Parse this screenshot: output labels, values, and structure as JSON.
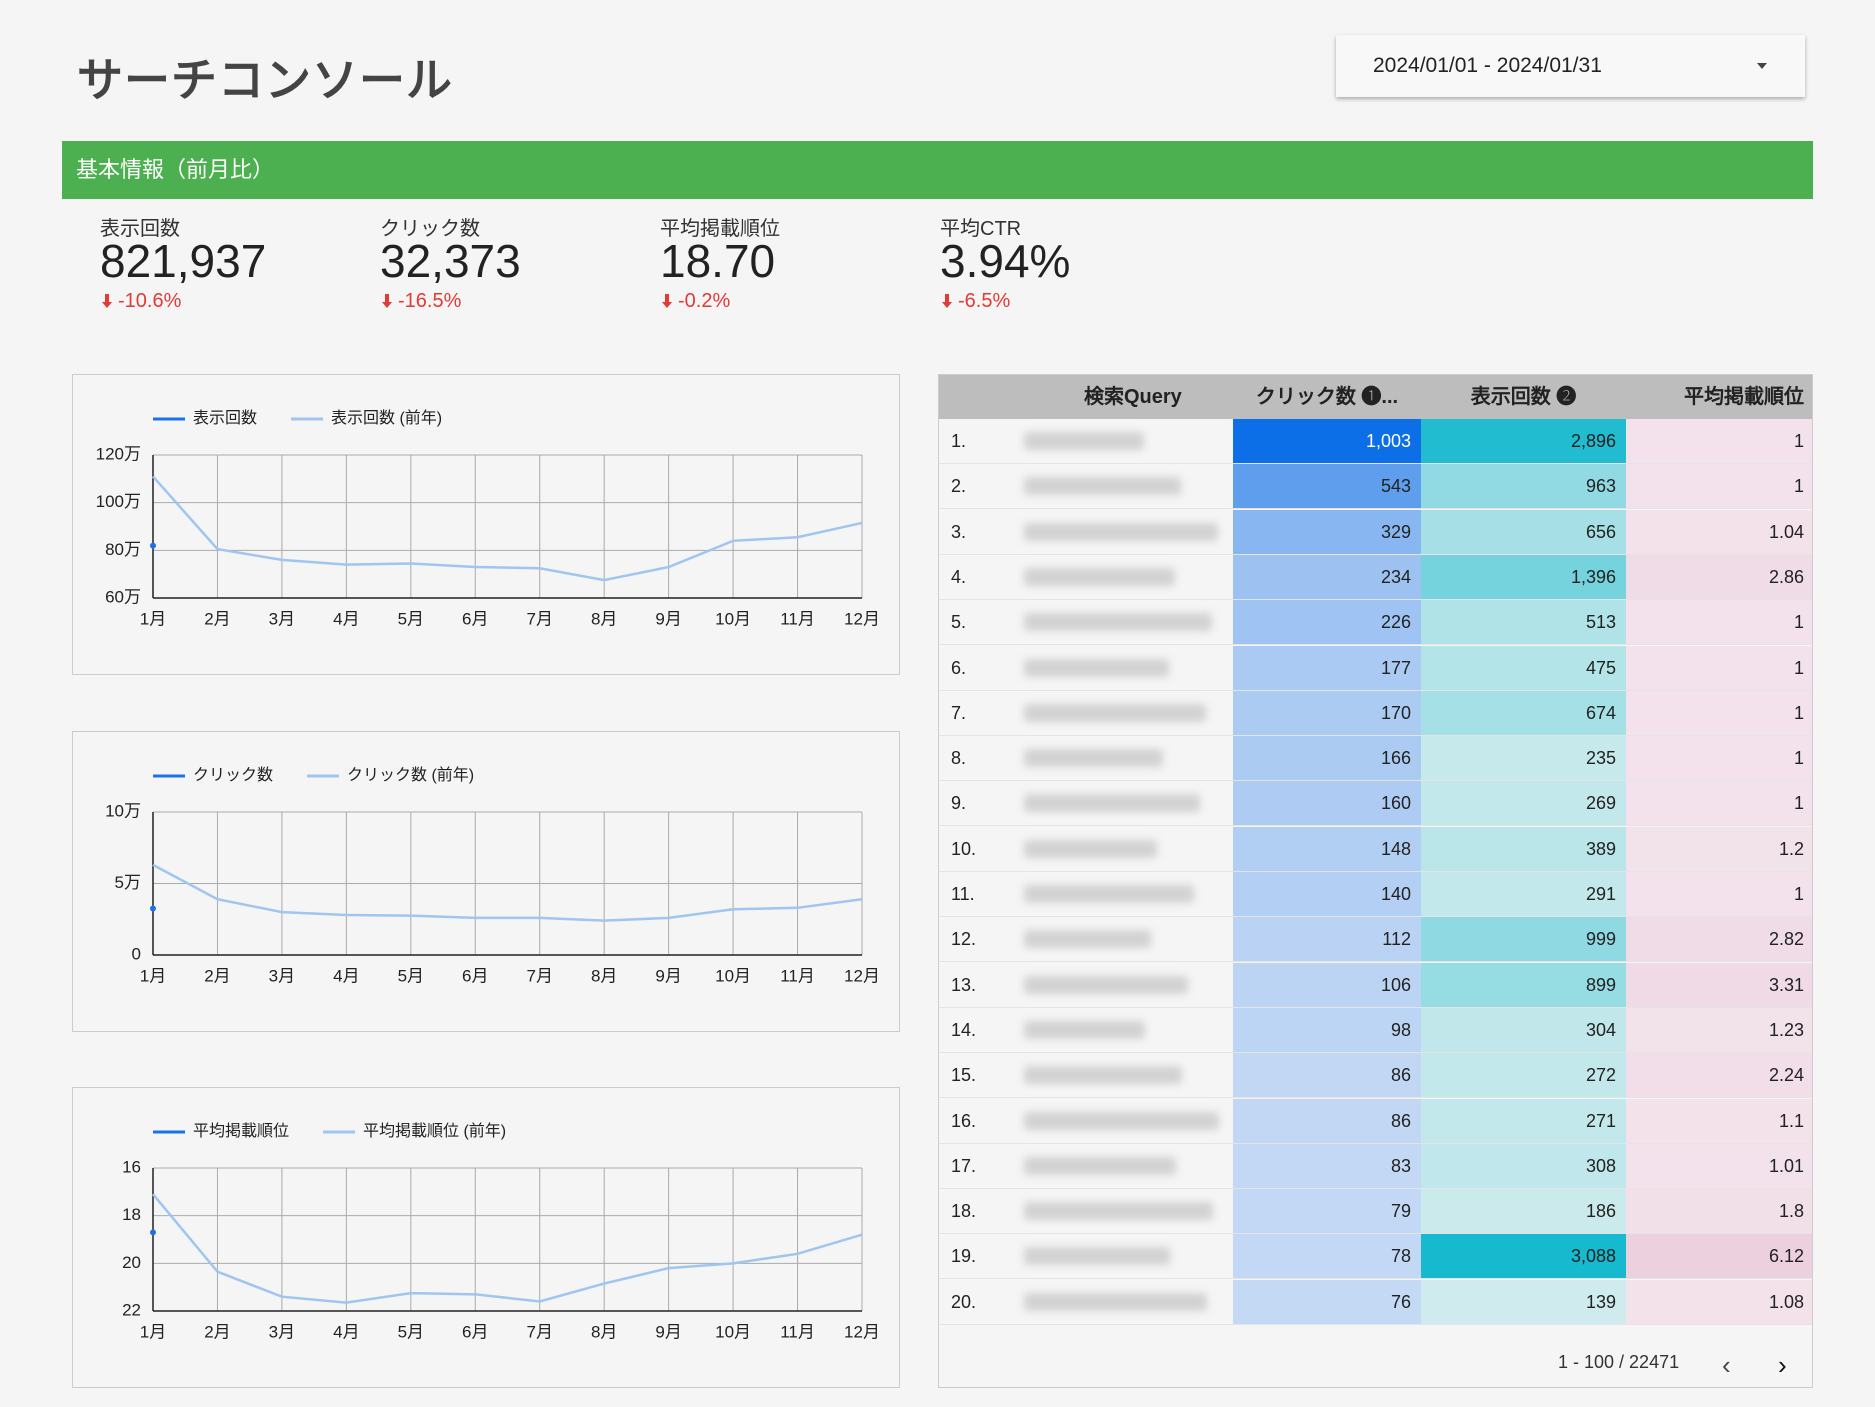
{
  "header": {
    "title": "サーチコンソール",
    "date_range": "2024/01/01 - 2024/01/31"
  },
  "section": {
    "title": "基本情報（前月比）"
  },
  "kpis": [
    {
      "label": "表示回数",
      "value": "821,937",
      "delta": "-10.6%"
    },
    {
      "label": "クリック数",
      "value": "32,373",
      "delta": "-16.5%"
    },
    {
      "label": "平均掲載順位",
      "value": "18.70",
      "delta": "-0.2%"
    },
    {
      "label": "平均CTR",
      "value": "3.94%",
      "delta": "-6.5%"
    }
  ],
  "chart_data": [
    {
      "type": "line",
      "categories": [
        "1月",
        "2月",
        "3月",
        "4月",
        "5月",
        "6月",
        "7月",
        "8月",
        "9月",
        "10月",
        "11月",
        "12月"
      ],
      "series": [
        {
          "name": "表示回数",
          "color": "#1a73e8",
          "values": [
            820000,
            null,
            null,
            null,
            null,
            null,
            null,
            null,
            null,
            null,
            null,
            null
          ]
        },
        {
          "name": "表示回数 (前年)",
          "color": "#9fc5f0",
          "values": [
            1110000,
            805000,
            760000,
            740000,
            745000,
            730000,
            725000,
            675000,
            730000,
            840000,
            855000,
            915000
          ]
        }
      ],
      "ylim": [
        600000,
        1200000
      ],
      "yticks": [
        {
          "value": 600000,
          "label": "60万"
        },
        {
          "value": 800000,
          "label": "80万"
        },
        {
          "value": 1000000,
          "label": "100万"
        },
        {
          "value": 1200000,
          "label": "120万"
        }
      ],
      "grid": true
    },
    {
      "type": "line",
      "categories": [
        "1月",
        "2月",
        "3月",
        "4月",
        "5月",
        "6月",
        "7月",
        "8月",
        "9月",
        "10月",
        "11月",
        "12月"
      ],
      "series": [
        {
          "name": "クリック数",
          "color": "#1a73e8",
          "values": [
            32500,
            null,
            null,
            null,
            null,
            null,
            null,
            null,
            null,
            null,
            null,
            null
          ]
        },
        {
          "name": "クリック数 (前年)",
          "color": "#9fc5f0",
          "values": [
            63000,
            39000,
            30000,
            28000,
            27500,
            26000,
            26000,
            24000,
            26000,
            32000,
            33000,
            39000
          ]
        }
      ],
      "ylim": [
        0,
        100000
      ],
      "yticks": [
        0,
        {
          "value": 50000,
          "label": "5万"
        },
        {
          "value": 100000,
          "label": "10万"
        }
      ],
      "grid": true
    },
    {
      "type": "line",
      "categories": [
        "1月",
        "2月",
        "3月",
        "4月",
        "5月",
        "6月",
        "7月",
        "8月",
        "9月",
        "10月",
        "11月",
        "12月"
      ],
      "series": [
        {
          "name": "平均掲載順位",
          "color": "#1a73e8",
          "values": [
            18.7,
            null,
            null,
            null,
            null,
            null,
            null,
            null,
            null,
            null,
            null,
            null
          ]
        },
        {
          "name": "平均掲載順位 (前年)",
          "color": "#9fc5f0",
          "values": [
            17.1,
            20.35,
            21.4,
            21.65,
            21.25,
            21.3,
            21.6,
            20.85,
            20.2,
            20.0,
            19.6,
            18.8
          ]
        }
      ],
      "ylim": [
        16,
        22
      ],
      "y_inverted": true,
      "yticks": [
        16,
        18,
        20,
        22
      ],
      "grid": true
    }
  ],
  "table": {
    "columns": [
      "検索Query",
      "クリック数 ❶...",
      "表示回数 ❷",
      "平均掲載順位"
    ],
    "rows": [
      [
        "1.",
        "1,003",
        "2,896",
        "1"
      ],
      [
        "2.",
        "543",
        "963",
        "1"
      ],
      [
        "3.",
        "329",
        "656",
        "1.04"
      ],
      [
        "4.",
        "234",
        "1,396",
        "2.86"
      ],
      [
        "5.",
        "226",
        "513",
        "1"
      ],
      [
        "6.",
        "177",
        "475",
        "1"
      ],
      [
        "7.",
        "170",
        "674",
        "1"
      ],
      [
        "8.",
        "166",
        "235",
        "1"
      ],
      [
        "9.",
        "160",
        "269",
        "1"
      ],
      [
        "10.",
        "148",
        "389",
        "1.2"
      ],
      [
        "11.",
        "140",
        "291",
        "1"
      ],
      [
        "12.",
        "112",
        "999",
        "2.82"
      ],
      [
        "13.",
        "106",
        "899",
        "3.31"
      ],
      [
        "14.",
        "98",
        "304",
        "1.23"
      ],
      [
        "15.",
        "86",
        "272",
        "2.24"
      ],
      [
        "16.",
        "86",
        "271",
        "1.1"
      ],
      [
        "17.",
        "83",
        "308",
        "1.01"
      ],
      [
        "18.",
        "79",
        "186",
        "1.8"
      ],
      [
        "19.",
        "78",
        "3,088",
        "6.12"
      ],
      [
        "20.",
        "76",
        "139",
        "1.08"
      ]
    ],
    "pagination": "1 - 100 / 22471"
  }
}
